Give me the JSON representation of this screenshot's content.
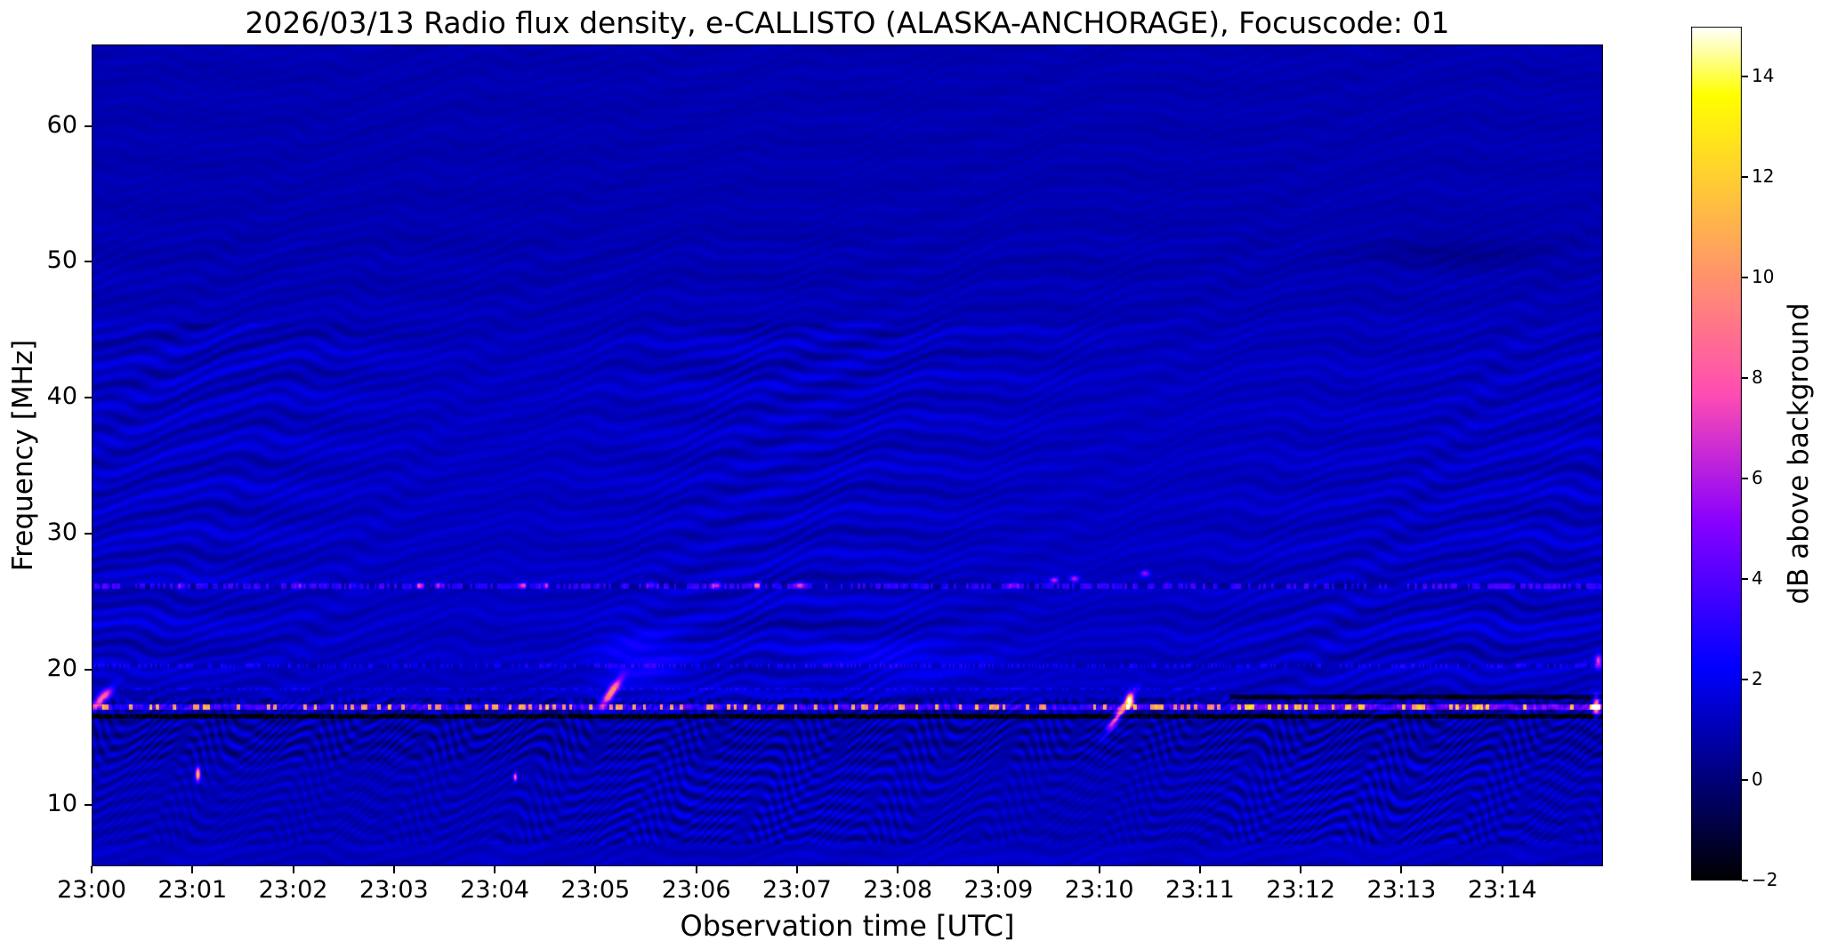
{
  "chart_data": {
    "type": "heatmap",
    "title": "2026/03/13  Radio flux density, e-CALLISTO (ALASKA-ANCHORAGE), Focuscode: 01",
    "date": "2026/03/13",
    "instrument": "e-CALLISTO",
    "station": "ALASKA-ANCHORAGE",
    "focuscode": "01",
    "xlabel": "Observation time [UTC]",
    "ylabel": "Frequency [MHz]",
    "x_range_minutes": [
      0,
      15
    ],
    "x_ticks": [
      {
        "minute": 0,
        "label": "23:00"
      },
      {
        "minute": 1,
        "label": "23:01"
      },
      {
        "minute": 2,
        "label": "23:02"
      },
      {
        "minute": 3,
        "label": "23:03"
      },
      {
        "minute": 4,
        "label": "23:04"
      },
      {
        "minute": 5,
        "label": "23:05"
      },
      {
        "minute": 6,
        "label": "23:06"
      },
      {
        "minute": 7,
        "label": "23:07"
      },
      {
        "minute": 8,
        "label": "23:08"
      },
      {
        "minute": 9,
        "label": "23:09"
      },
      {
        "minute": 10,
        "label": "23:10"
      },
      {
        "minute": 11,
        "label": "23:11"
      },
      {
        "minute": 12,
        "label": "23:12"
      },
      {
        "minute": 13,
        "label": "23:13"
      },
      {
        "minute": 14,
        "label": "23:14"
      }
    ],
    "freq_range_mhz": [
      5.5,
      66
    ],
    "y_ticks": [
      10,
      20,
      30,
      40,
      50,
      60
    ],
    "colorbar": {
      "label": "dB above background",
      "min": -2,
      "max": 15,
      "ticks": [
        14,
        12,
        10,
        8,
        6,
        4,
        2,
        0,
        -2
      ],
      "colormap": "gnuplot2"
    },
    "background_level_db": 1.0,
    "rfi_lines": [
      {
        "f": 26.15,
        "desc": "intermittent narrowband RFI, dashed bright/dark"
      },
      {
        "f": 20.3,
        "desc": "dashed RFI line"
      },
      {
        "f": 18.6,
        "desc": "faint dashed RFI line (before 23:11)"
      },
      {
        "f": 17.25,
        "desc": "strong bright RFI band with white/magenta dashes"
      },
      {
        "f": 16.55,
        "desc": "dark narrow absorption-like line"
      },
      {
        "f": 18.0,
        "desc": "dark continuous line after 23:11"
      }
    ],
    "rfi_26mhz_dashes": [
      {
        "t": 0.9,
        "f": 26.2,
        "db": 3.5
      },
      {
        "t": 2.05,
        "f": 26.2,
        "db": 3.5
      },
      {
        "t": 2.6,
        "f": 26.2,
        "db": 3.0
      },
      {
        "t": 3.25,
        "f": 26.2,
        "db": 4.5
      },
      {
        "t": 3.45,
        "f": 26.2,
        "db": 4.0
      },
      {
        "t": 4.28,
        "f": 26.2,
        "db": 4.5
      },
      {
        "t": 4.5,
        "f": 26.2,
        "db": 4.5
      },
      {
        "t": 5.55,
        "f": 26.2,
        "db": 4.0
      },
      {
        "t": 6.2,
        "f": 26.2,
        "db": 6.0
      },
      {
        "t": 6.6,
        "f": 26.2,
        "db": 6.5
      },
      {
        "t": 7.02,
        "f": 26.2,
        "db": 4.0
      },
      {
        "t": 9.15,
        "f": 26.2,
        "db": 4.5
      },
      {
        "t": 9.55,
        "f": 26.6,
        "db": 5.5
      },
      {
        "t": 9.75,
        "f": 26.7,
        "db": 5.5
      },
      {
        "t": 10.45,
        "f": 27.1,
        "db": 4.5
      }
    ],
    "features": [
      {
        "t": 0.1,
        "f": 17.9,
        "dt": 0.1,
        "df": 0.45,
        "db": 8,
        "drift": 6,
        "desc": "bright drifting burst at left edge near 18 MHz"
      },
      {
        "t": 1.05,
        "f": 12.3,
        "dt": 0.022,
        "df": 0.45,
        "db": 12,
        "drift": 0,
        "desc": "bright yellow point at 23:01, 12 MHz"
      },
      {
        "t": 4.2,
        "f": 12.1,
        "dt": 0.018,
        "df": 0.3,
        "db": 8,
        "drift": 0,
        "desc": "small bright point at 23:04, 12 MHz"
      },
      {
        "t": 5.15,
        "f": 18.3,
        "dt": 0.1,
        "df": 0.5,
        "db": 9,
        "drift": 9,
        "desc": "drifting burst at 23:05, 17-20 MHz"
      },
      {
        "t": 5.45,
        "f": 20.8,
        "dt": 0.45,
        "df": 2.2,
        "db": 1.2,
        "drift": 0,
        "desc": "diffuse enhancement around 23:05, 19-23 MHz"
      },
      {
        "t": 8.0,
        "f": 20.6,
        "dt": 0.9,
        "df": 1.4,
        "db": 0.8,
        "drift": 0,
        "desc": "diffuse weak band 23:07-23:09 near 20 MHz"
      },
      {
        "t": 10.2,
        "f": 16.8,
        "dt": 0.12,
        "df": 0.45,
        "db": 9,
        "drift": 10,
        "desc": "diagonal drifting burst at 23:10, 14-19 MHz"
      },
      {
        "t": 10.3,
        "f": 17.7,
        "dt": 0.035,
        "df": 0.5,
        "db": 12,
        "drift": 0,
        "desc": "bright orange blob at 23:10, 17.7 MHz"
      },
      {
        "t": 13.6,
        "f": 50.8,
        "dt": 1.0,
        "df": 1.5,
        "db": -0.5,
        "drift": 0,
        "desc": "slightly darker patch above 50 MHz after 23:12"
      },
      {
        "t": 14.93,
        "f": 17.3,
        "dt": 0.035,
        "df": 0.7,
        "db": 10,
        "drift": 0,
        "desc": "bright spot at right edge, 17 MHz"
      },
      {
        "t": 14.95,
        "f": 20.6,
        "dt": 0.03,
        "df": 0.5,
        "db": 6,
        "drift": 0,
        "desc": "bright spot at right edge, 21 MHz"
      }
    ]
  }
}
